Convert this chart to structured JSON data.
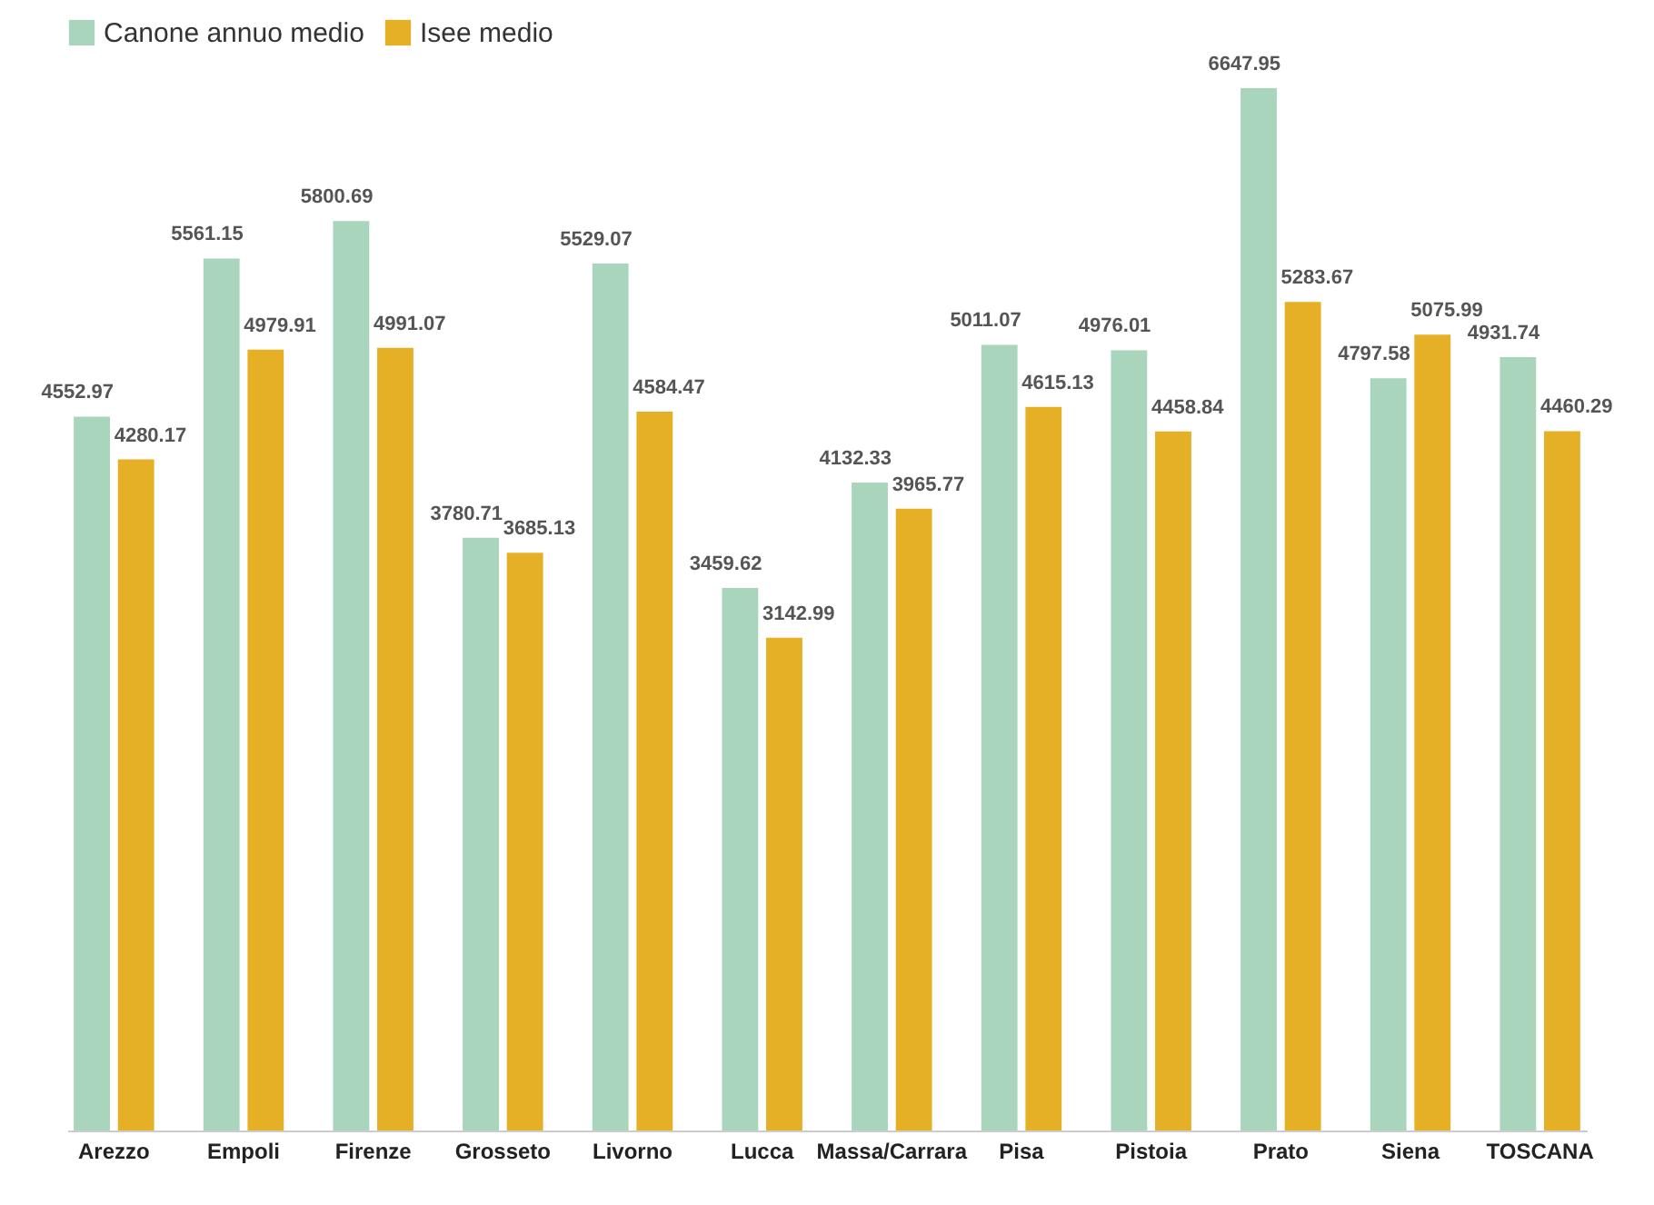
{
  "chart_data": {
    "type": "bar",
    "categories": [
      "Arezzo",
      "Empoli",
      "Firenze",
      "Grosseto",
      "Livorno",
      "Lucca",
      "Massa/Carrara",
      "Pisa",
      "Pistoia",
      "Prato",
      "Siena",
      "TOSCANA"
    ],
    "series": [
      {
        "name": "Canone annuo medio",
        "color": "#a8d5bc",
        "values": [
          4552.97,
          5561.15,
          5800.69,
          3780.71,
          5529.07,
          3459.62,
          4132.33,
          5011.07,
          4976.01,
          6647.95,
          4797.58,
          4931.74
        ]
      },
      {
        "name": "Isee medio",
        "color": "#e6b026",
        "values": [
          4280.17,
          4979.91,
          4991.07,
          3685.13,
          4584.47,
          3142.99,
          3965.77,
          4615.13,
          4458.84,
          5283.67,
          5075.99,
          4460.29
        ]
      }
    ],
    "ylim": [
      0,
      6700
    ],
    "tick_labels": "x",
    "data_labels": true,
    "legend": "top",
    "grid": false
  }
}
